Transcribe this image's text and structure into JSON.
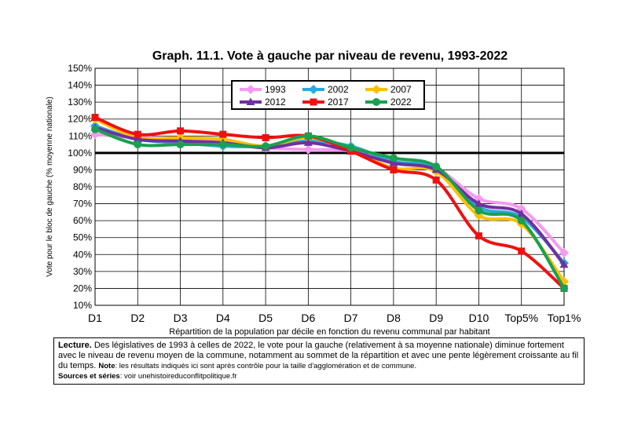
{
  "title": "Graph. 11.1. Vote à gauche par niveau de revenu, 1993-2022",
  "note": {
    "lecture_label": "Lecture.",
    "lecture_text": "Des législatives de 1993 à celles de 2022, le vote pour la gauche (relativement à sa moyenne nationale) diminue fortement avec le niveau de revenu moyen de la commune, notamment au sommet de la répartition et avec une pente légèrement croissante au fil du temps.",
    "note_label": "Note",
    "note_text": ": les résultats indiqués ici sont après contrôle pour la taille d'agglomération et de commune.",
    "sources_label": "Sources et séries",
    "sources_text": ": voir unehistoireduconflitpolitique.fr"
  },
  "chart_data": {
    "type": "line",
    "title": "Graph. 11.1. Vote à gauche par niveau de revenu, 1993-2022",
    "xlabel": "Répartition de la population par décile en fonction du revenu communal par habitant",
    "ylabel": "Vote pour le bloc de gauche (% moyenne nationale)",
    "categories": [
      "D1",
      "D2",
      "D3",
      "D4",
      "D5",
      "D6",
      "D7",
      "D8",
      "D9",
      "D10",
      "Top5%",
      "Top1%"
    ],
    "yticks": [
      "10%",
      "20%",
      "30%",
      "40%",
      "50%",
      "60%",
      "70%",
      "80%",
      "90%",
      "100%",
      "110%",
      "120%",
      "130%",
      "140%",
      "150%"
    ],
    "ylim": [
      10,
      150
    ],
    "reference_line": 100,
    "grid": true,
    "legend_position": "top-center",
    "series": [
      {
        "name": "1993",
        "color": "#f59af0",
        "values": [
          111,
          109,
          108,
          107,
          103,
          102,
          101,
          94,
          91,
          73,
          67,
          41
        ]
      },
      {
        "name": "2002",
        "color": "#2aa9e0",
        "values": [
          116,
          108,
          106,
          104,
          104,
          107,
          104,
          95,
          91,
          68,
          62,
          35
        ]
      },
      {
        "name": "2007",
        "color": "#ffbf00",
        "values": [
          120,
          109,
          109,
          108,
          104,
          109,
          102,
          91,
          89,
          63,
          58,
          24
        ]
      },
      {
        "name": "2012",
        "color": "#7030a0",
        "values": [
          115,
          108,
          107,
          106,
          103,
          106,
          101,
          94,
          90,
          70,
          64,
          34
        ]
      },
      {
        "name": "2017",
        "color": "#ee1111",
        "values": [
          121,
          111,
          113,
          111,
          109,
          110,
          101,
          90,
          84,
          51,
          42,
          20
        ]
      },
      {
        "name": "2022",
        "color": "#1aa050",
        "values": [
          114,
          105,
          105,
          105,
          104,
          110,
          103,
          97,
          92,
          66,
          60,
          20
        ]
      }
    ]
  }
}
